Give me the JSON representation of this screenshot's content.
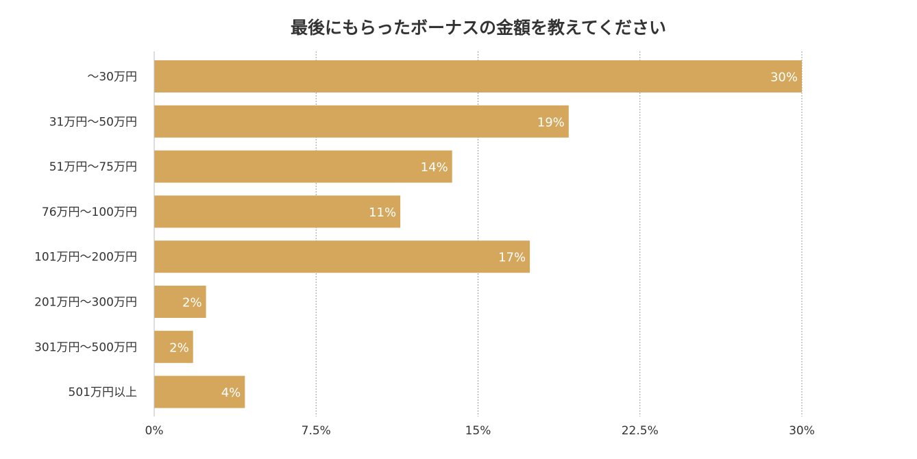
{
  "chart_data": {
    "type": "bar",
    "orientation": "horizontal",
    "title": "最後にもらったボーナスの金額を教えてください",
    "xlabel": "",
    "ylabel": "",
    "categories": [
      "〜30万円",
      "31万円〜50万円",
      "51万円〜75万円",
      "76万円〜100万円",
      "101万円〜200万円",
      "201万円〜300万円",
      "301万円〜500万円",
      "501万円以上"
    ],
    "values": [
      30,
      19.2,
      13.8,
      11.4,
      17.4,
      2.4,
      1.8,
      4.2
    ],
    "data_labels": [
      "30%",
      "19%",
      "14%",
      "11%",
      "17%",
      "2%",
      "2%",
      "4%"
    ],
    "xlim": [
      0,
      30
    ],
    "x_ticks": [
      0,
      7.5,
      15,
      22.5,
      30
    ],
    "x_tick_labels": [
      "0%",
      "7.5%",
      "15%",
      "22.5%",
      "30%"
    ],
    "grid": true,
    "legend": "none",
    "colors": {
      "bar": "#D4A75C",
      "grid": "#999999",
      "axis": "#bbbbbb",
      "text": "#333333",
      "label_text": "#ffffff"
    }
  }
}
